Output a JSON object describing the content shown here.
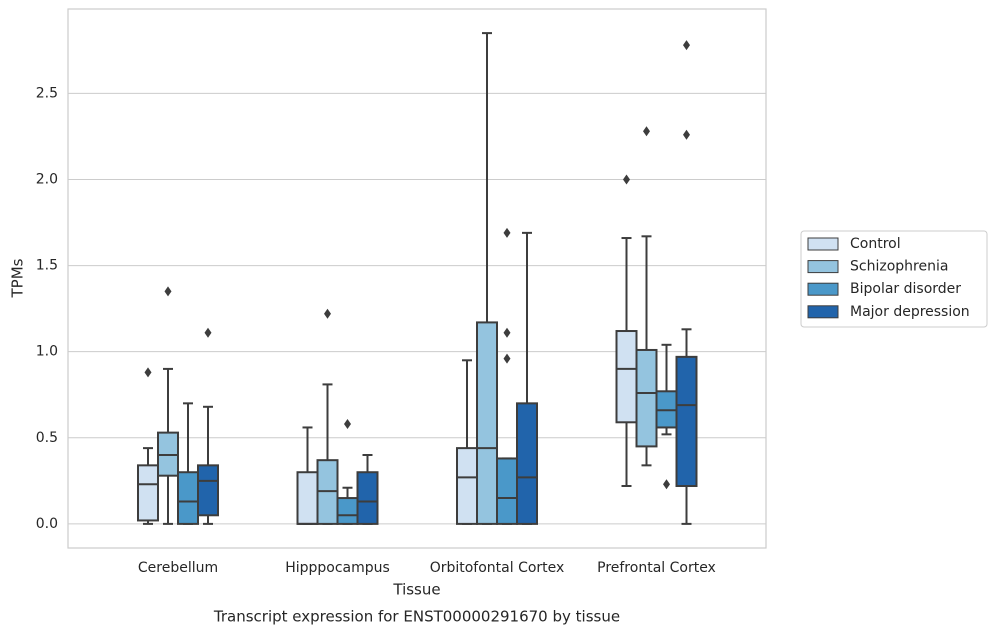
{
  "chart_data": {
    "type": "box",
    "caption": "Transcript expression for ENST00000291670 by tissue",
    "x_label": "Tissue",
    "y_label": "TPMs",
    "categories": [
      "Cerebellum",
      "Hipppocampus",
      "Orbitofontal Cortex",
      "Prefrontal Cortex"
    ],
    "ylim": [
      -0.14,
      2.99
    ],
    "yticks": [
      {
        "value": 0,
        "label": "0.0"
      },
      0.5,
      {
        "value": 1,
        "label": "1.0"
      },
      1.5,
      {
        "value": 2,
        "label": "2.0"
      },
      2.5
    ],
    "grid": true,
    "legend": "right",
    "series": [
      {
        "name": "Control",
        "color": "#d0e1f2",
        "values": [
          {
            "whislo": 0,
            "q1": 0.02,
            "med": 0.23,
            "q3": 0.34,
            "whishi": 0.44,
            "fliers": [
              0.88
            ]
          },
          {
            "whislo": 0,
            "q1": 0,
            "med": 0,
            "q3": 0.3,
            "whishi": 0.56,
            "fliers": []
          },
          {
            "whislo": 0,
            "q1": 0,
            "med": 0.27,
            "q3": 0.44,
            "whishi": 0.95,
            "fliers": []
          },
          {
            "whislo": 0.22,
            "q1": 0.59,
            "med": 0.9,
            "q3": 1.12,
            "whishi": 1.66,
            "fliers": [
              2.0
            ]
          }
        ]
      },
      {
        "name": "Schizophrenia",
        "color": "#94c4df",
        "values": [
          {
            "whislo": 0,
            "q1": 0.28,
            "med": 0.4,
            "q3": 0.53,
            "whishi": 0.9,
            "fliers": [
              1.35
            ]
          },
          {
            "whislo": 0,
            "q1": 0,
            "med": 0.19,
            "q3": 0.37,
            "whishi": 0.81,
            "fliers": [
              1.22
            ]
          },
          {
            "whislo": 0,
            "q1": 0,
            "med": 0.44,
            "q3": 1.17,
            "whishi": 2.85,
            "fliers": []
          },
          {
            "whislo": 0.34,
            "q1": 0.45,
            "med": 0.76,
            "q3": 1.01,
            "whishi": 1.67,
            "fliers": [
              2.28
            ]
          }
        ]
      },
      {
        "name": "Bipolar disorder",
        "color": "#4a98c9",
        "values": [
          {
            "whislo": 0,
            "q1": 0,
            "med": 0.13,
            "q3": 0.3,
            "whishi": 0.7,
            "fliers": []
          },
          {
            "whislo": 0,
            "q1": 0,
            "med": 0.05,
            "q3": 0.15,
            "whishi": 0.21,
            "fliers": [
              0.58
            ]
          },
          {
            "whislo": 0,
            "q1": 0,
            "med": 0.15,
            "q3": 0.38,
            "whishi": 0.38,
            "fliers": [
              1.69,
              1.11,
              0.96
            ]
          },
          {
            "whislo": 0.52,
            "q1": 0.56,
            "med": 0.66,
            "q3": 0.77,
            "whishi": 1.04,
            "fliers": [
              0.23
            ]
          }
        ]
      },
      {
        "name": "Major depression",
        "color": "#2164ab",
        "values": [
          {
            "whislo": 0,
            "q1": 0.05,
            "med": 0.25,
            "q3": 0.34,
            "whishi": 0.68,
            "fliers": [
              1.11
            ]
          },
          {
            "whislo": 0,
            "q1": 0,
            "med": 0.13,
            "q3": 0.3,
            "whishi": 0.4,
            "fliers": []
          },
          {
            "whislo": 0,
            "q1": 0,
            "med": 0.27,
            "q3": 0.7,
            "whishi": 1.69,
            "fliers": []
          },
          {
            "whislo": 0,
            "q1": 0.22,
            "med": 0.69,
            "q3": 0.97,
            "whishi": 1.13,
            "fliers": [
              2.78,
              2.26
            ]
          }
        ]
      }
    ]
  }
}
